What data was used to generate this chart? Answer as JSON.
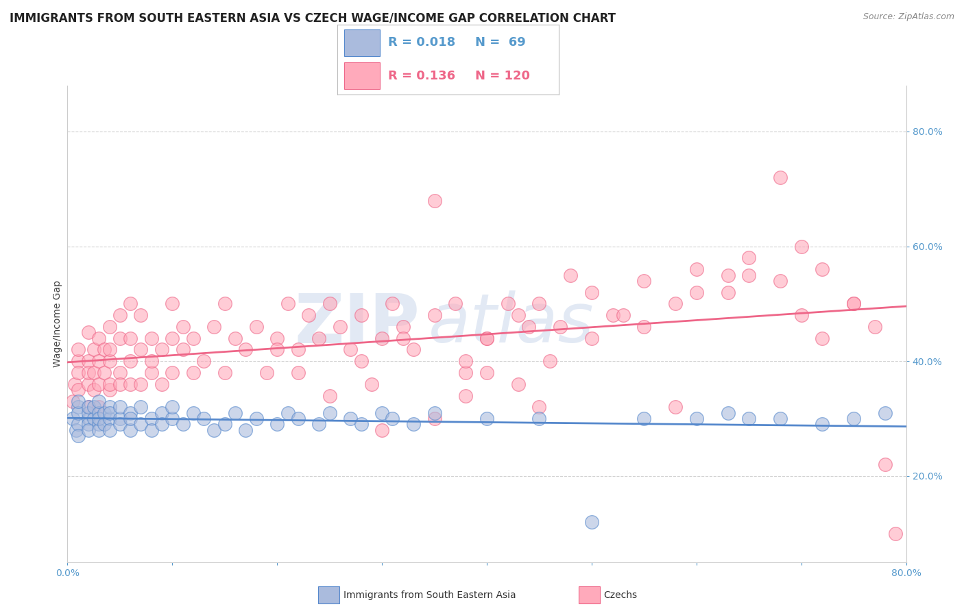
{
  "title": "IMMIGRANTS FROM SOUTH EASTERN ASIA VS CZECH WAGE/INCOME GAP CORRELATION CHART",
  "source_text": "Source: ZipAtlas.com",
  "ylabel": "Wage/Income Gap",
  "x_ticks": [
    0.0,
    0.1,
    0.2,
    0.3,
    0.4,
    0.5,
    0.6,
    0.7,
    0.8
  ],
  "y_ticks_right": [
    0.2,
    0.4,
    0.6,
    0.8
  ],
  "y_min": 0.05,
  "y_max": 0.88,
  "x_min": 0.0,
  "x_max": 0.8,
  "legend_R1": "R = 0.018",
  "legend_N1": "N =  69",
  "legend_R2": "R = 0.136",
  "legend_N2": "N = 120",
  "color_blue": "#AABBDD",
  "color_pink": "#FFAABB",
  "color_blue_line": "#5588CC",
  "color_pink_line": "#EE6688",
  "watermark_color": "#D0DCF0",
  "background_color": "#FFFFFF",
  "grid_color": "#CCCCCC",
  "blue_scatter_x": [
    0.005,
    0.008,
    0.01,
    0.01,
    0.01,
    0.01,
    0.01,
    0.02,
    0.02,
    0.02,
    0.02,
    0.02,
    0.025,
    0.025,
    0.03,
    0.03,
    0.03,
    0.03,
    0.03,
    0.035,
    0.035,
    0.04,
    0.04,
    0.04,
    0.04,
    0.05,
    0.05,
    0.05,
    0.06,
    0.06,
    0.06,
    0.07,
    0.07,
    0.08,
    0.08,
    0.09,
    0.09,
    0.1,
    0.1,
    0.11,
    0.12,
    0.13,
    0.14,
    0.15,
    0.16,
    0.17,
    0.18,
    0.2,
    0.21,
    0.22,
    0.24,
    0.25,
    0.27,
    0.28,
    0.3,
    0.31,
    0.33,
    0.35,
    0.4,
    0.45,
    0.5,
    0.55,
    0.6,
    0.63,
    0.65,
    0.68,
    0.72,
    0.75,
    0.78
  ],
  "blue_scatter_y": [
    0.3,
    0.28,
    0.32,
    0.29,
    0.31,
    0.27,
    0.33,
    0.3,
    0.31,
    0.29,
    0.32,
    0.28,
    0.3,
    0.32,
    0.31,
    0.29,
    0.33,
    0.28,
    0.3,
    0.31,
    0.29,
    0.3,
    0.32,
    0.28,
    0.31,
    0.3,
    0.32,
    0.29,
    0.28,
    0.31,
    0.3,
    0.29,
    0.32,
    0.3,
    0.28,
    0.31,
    0.29,
    0.3,
    0.32,
    0.29,
    0.31,
    0.3,
    0.28,
    0.29,
    0.31,
    0.28,
    0.3,
    0.29,
    0.31,
    0.3,
    0.29,
    0.31,
    0.3,
    0.29,
    0.31,
    0.3,
    0.29,
    0.31,
    0.3,
    0.3,
    0.12,
    0.3,
    0.3,
    0.31,
    0.3,
    0.3,
    0.29,
    0.3,
    0.31
  ],
  "pink_scatter_x": [
    0.005,
    0.007,
    0.01,
    0.01,
    0.01,
    0.01,
    0.02,
    0.02,
    0.02,
    0.02,
    0.02,
    0.025,
    0.025,
    0.025,
    0.03,
    0.03,
    0.03,
    0.03,
    0.035,
    0.035,
    0.04,
    0.04,
    0.04,
    0.04,
    0.04,
    0.05,
    0.05,
    0.05,
    0.05,
    0.06,
    0.06,
    0.06,
    0.06,
    0.07,
    0.07,
    0.07,
    0.08,
    0.08,
    0.08,
    0.09,
    0.09,
    0.1,
    0.1,
    0.1,
    0.11,
    0.11,
    0.12,
    0.12,
    0.13,
    0.14,
    0.15,
    0.15,
    0.16,
    0.17,
    0.18,
    0.19,
    0.2,
    0.21,
    0.22,
    0.23,
    0.24,
    0.25,
    0.26,
    0.27,
    0.28,
    0.29,
    0.3,
    0.31,
    0.32,
    0.33,
    0.35,
    0.37,
    0.38,
    0.4,
    0.42,
    0.44,
    0.46,
    0.48,
    0.5,
    0.52,
    0.55,
    0.58,
    0.6,
    0.63,
    0.65,
    0.68,
    0.7,
    0.72,
    0.75,
    0.77,
    0.79,
    0.35,
    0.38,
    0.4,
    0.43,
    0.45,
    0.2,
    0.22,
    0.25,
    0.28,
    0.3,
    0.32,
    0.35,
    0.38,
    0.4,
    0.43,
    0.45,
    0.47,
    0.5,
    0.53,
    0.55,
    0.58,
    0.6,
    0.63,
    0.65,
    0.68,
    0.7,
    0.72,
    0.75,
    0.78
  ],
  "pink_scatter_y": [
    0.33,
    0.36,
    0.4,
    0.35,
    0.38,
    0.42,
    0.36,
    0.4,
    0.45,
    0.32,
    0.38,
    0.35,
    0.42,
    0.38,
    0.36,
    0.44,
    0.4,
    0.32,
    0.38,
    0.42,
    0.35,
    0.4,
    0.46,
    0.36,
    0.42,
    0.38,
    0.44,
    0.48,
    0.36,
    0.4,
    0.44,
    0.36,
    0.5,
    0.42,
    0.36,
    0.48,
    0.38,
    0.44,
    0.4,
    0.42,
    0.36,
    0.44,
    0.5,
    0.38,
    0.42,
    0.46,
    0.38,
    0.44,
    0.4,
    0.46,
    0.38,
    0.5,
    0.44,
    0.42,
    0.46,
    0.38,
    0.44,
    0.5,
    0.42,
    0.48,
    0.44,
    0.5,
    0.46,
    0.42,
    0.48,
    0.36,
    0.44,
    0.5,
    0.46,
    0.42,
    0.68,
    0.5,
    0.38,
    0.44,
    0.5,
    0.46,
    0.4,
    0.55,
    0.44,
    0.48,
    0.46,
    0.32,
    0.52,
    0.55,
    0.55,
    0.72,
    0.48,
    0.44,
    0.5,
    0.46,
    0.1,
    0.3,
    0.34,
    0.38,
    0.36,
    0.32,
    0.42,
    0.38,
    0.34,
    0.4,
    0.28,
    0.44,
    0.48,
    0.4,
    0.44,
    0.48,
    0.5,
    0.46,
    0.52,
    0.48,
    0.54,
    0.5,
    0.56,
    0.52,
    0.58,
    0.54,
    0.6,
    0.56,
    0.5,
    0.22
  ],
  "title_fontsize": 12,
  "axis_label_fontsize": 10,
  "tick_fontsize": 10,
  "legend_fontsize": 13
}
